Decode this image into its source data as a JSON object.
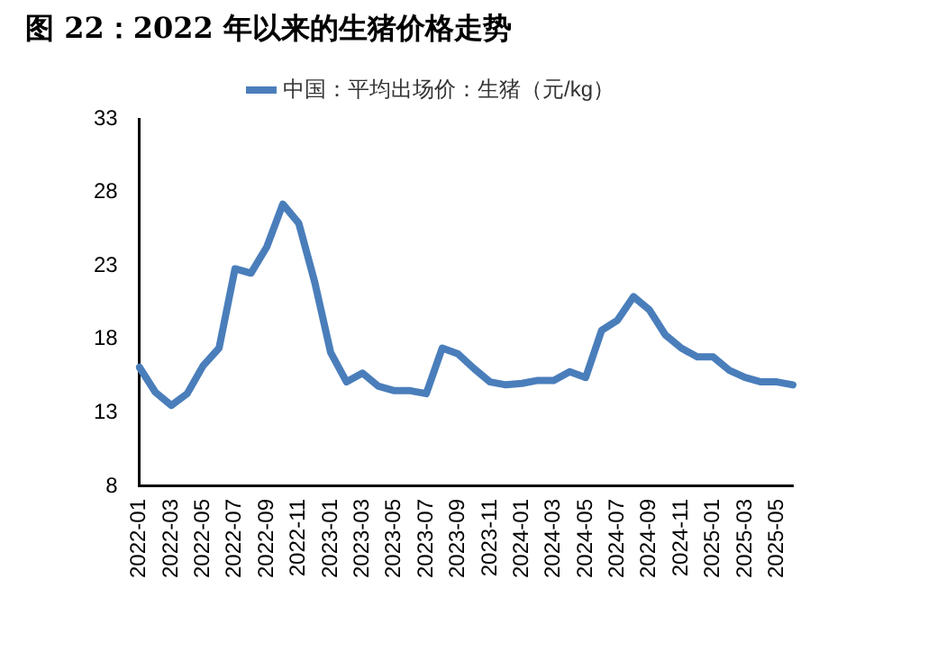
{
  "chart_data": {
    "type": "line",
    "title": "图 22：2022 年以来的生猪价格走势",
    "categories": [
      "2022-01",
      null,
      "2022-03",
      null,
      "2022-05",
      null,
      "2022-07",
      null,
      "2022-09",
      null,
      "2022-11",
      null,
      "2023-01",
      null,
      "2023-03",
      null,
      "2023-05",
      null,
      "2023-07",
      null,
      "2023-09",
      null,
      "2023-11",
      null,
      "2024-01",
      null,
      "2024-03",
      null,
      "2024-05",
      null,
      "2024-07",
      null,
      "2024-09",
      null,
      "2024-11",
      null,
      "2025-01",
      null,
      "2025-03",
      null,
      "2025-05",
      null
    ],
    "series": [
      {
        "name": "中国：平均出场价：生猪（元/kg）",
        "color": "#4a7ebb",
        "values": [
          16.1,
          14.4,
          13.5,
          14.3,
          16.2,
          17.4,
          22.8,
          22.5,
          24.3,
          27.2,
          25.9,
          21.9,
          17.1,
          15.1,
          15.7,
          14.8,
          14.5,
          14.5,
          14.3,
          17.4,
          17.0,
          16.0,
          15.1,
          14.9,
          15.0,
          15.2,
          15.2,
          15.8,
          15.4,
          18.6,
          19.3,
          20.9,
          20.0,
          18.3,
          17.4,
          16.8,
          16.8,
          15.9,
          15.4,
          15.1,
          15.1,
          14.9
        ]
      }
    ],
    "ylim": [
      8,
      33
    ],
    "yticks": [
      8,
      13,
      18,
      23,
      28,
      33
    ],
    "grid": false,
    "legend": "top",
    "marker": "none",
    "line_style": "solid"
  }
}
